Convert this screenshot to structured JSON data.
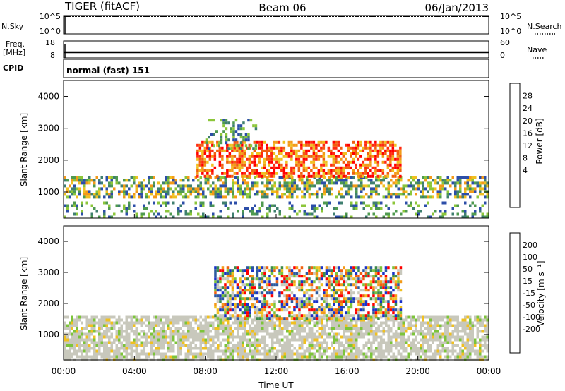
{
  "header": {
    "radar": "TIGER (fitACF)",
    "beam": "Beam 06",
    "date": "06/Jan/2013"
  },
  "status_panels": {
    "nsky_label": "N.Sky",
    "nsky_ticks": [
      "10^5",
      "10^0"
    ],
    "nsearch_label": "N.Search",
    "nsearch_ticks": [
      "10^5",
      "10^0"
    ],
    "freq_label_1": "Freq.",
    "freq_label_2": "[MHz]",
    "freq_ticks": [
      "18",
      "8"
    ],
    "nave_label": "Nave",
    "nave_ticks": [
      "60",
      "0"
    ],
    "cpid_label": "CPID",
    "cpid_text": "normal (fast) 151"
  },
  "chart_data": [
    {
      "type": "heatmap",
      "quantity": "Power",
      "ylabel": "Slant Range [km]",
      "ylim": [
        180,
        4500
      ],
      "yticks": [
        "4000",
        "3000",
        "2000",
        "1000"
      ],
      "xlabel": "",
      "xticks": [],
      "colorbar_label": "Power [dB]",
      "colorbar_ticks": [
        "28",
        "24",
        "20",
        "16",
        "12",
        "8",
        "4"
      ],
      "colorbar_colors": [
        "#2233ee",
        "#2c4ea8",
        "#3f7f6f",
        "#4f9a4f",
        "#8cc63a",
        "#f0c020",
        "#f39a18",
        "#f06010",
        "#ff2a10",
        "#ff0000"
      ],
      "bands": [
        {
          "t0": 0.0,
          "t1": 24.0,
          "r0": 800,
          "r1": 1500,
          "level": "mid"
        },
        {
          "t0": 7.5,
          "t1": 19.0,
          "r0": 1500,
          "r1": 2600,
          "level": "high"
        },
        {
          "t0": 8.0,
          "t1": 11.0,
          "r0": 2400,
          "r1": 3300,
          "level": "low"
        },
        {
          "t0": 0.0,
          "t1": 24.0,
          "r0": 200,
          "r1": 700,
          "level": "low"
        }
      ]
    },
    {
      "type": "heatmap",
      "quantity": "Velocity",
      "ylabel": "Slant Range [km]",
      "ylim": [
        180,
        4500
      ],
      "yticks": [
        "4000",
        "3000",
        "2000",
        "1000"
      ],
      "xlabel": "Time UT",
      "xticks": [
        "00:00",
        "04:00",
        "08:00",
        "12:00",
        "16:00",
        "20:00",
        "00:00"
      ],
      "xlim": [
        0,
        24
      ],
      "colorbar_label": "Velocity [m s⁻¹]",
      "colorbar_ticks": [
        "200",
        "100",
        "50",
        "15",
        "-15",
        "-50",
        "-100",
        "-200"
      ],
      "colorbar_colors": [
        "#1a32c8",
        "#2c5aa0",
        "#3c8a4a",
        "#7cc43a",
        "#c8c8bc",
        "#c8c8bc",
        "#f0c020",
        "#f39a18",
        "#f06010",
        "#ff0000"
      ],
      "bands": [
        {
          "t0": 0.0,
          "t1": 24.0,
          "r0": 200,
          "r1": 1600,
          "level": "ground"
        },
        {
          "t0": 8.5,
          "t1": 19.0,
          "r0": 1500,
          "r1": 3200,
          "level": "mixed"
        }
      ]
    }
  ],
  "colors": {
    "axis": "#000000",
    "background": "#ffffff"
  }
}
